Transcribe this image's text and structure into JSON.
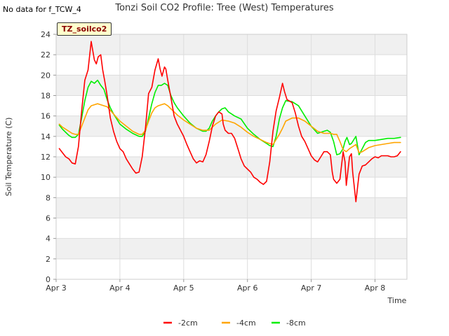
{
  "no_data_note": "No data for f_TCW_4",
  "badge_label": "TZ_soilco2",
  "chart_data": {
    "type": "line",
    "title": "Tonzi Soil CO2 Profile: Tree (West) Temperatures",
    "xlabel": "Time",
    "ylabel": "Soil Temperature (C)",
    "xlim": [
      3,
      8.5
    ],
    "ylim": [
      0,
      24
    ],
    "x_ticks": [
      3,
      4,
      5,
      6,
      7,
      8
    ],
    "x_tick_labels": [
      "Apr 3",
      "Apr 4",
      "Apr 5",
      "Apr 6",
      "Apr 7",
      "Apr 8"
    ],
    "y_ticks": [
      0,
      2,
      4,
      6,
      8,
      10,
      12,
      14,
      16,
      18,
      20,
      22,
      24
    ],
    "legend_position": "bottom-center",
    "series": [
      {
        "name": "-2cm",
        "color": "#ff0000",
        "x": [
          3.05,
          3.1,
          3.15,
          3.2,
          3.25,
          3.3,
          3.35,
          3.4,
          3.45,
          3.5,
          3.55,
          3.6,
          3.63,
          3.66,
          3.7,
          3.73,
          3.76,
          3.8,
          3.85,
          3.9,
          3.95,
          4.0,
          4.05,
          4.1,
          4.15,
          4.2,
          4.25,
          4.3,
          4.35,
          4.4,
          4.45,
          4.5,
          4.55,
          4.6,
          4.63,
          4.66,
          4.7,
          4.72,
          4.75,
          4.8,
          4.85,
          4.9,
          4.95,
          5.0,
          5.05,
          5.1,
          5.15,
          5.2,
          5.25,
          5.3,
          5.35,
          5.4,
          5.45,
          5.5,
          5.55,
          5.6,
          5.62,
          5.65,
          5.7,
          5.75,
          5.8,
          5.85,
          5.9,
          5.95,
          6.0,
          6.05,
          6.1,
          6.15,
          6.2,
          6.25,
          6.3,
          6.35,
          6.4,
          6.45,
          6.5,
          6.55,
          6.58,
          6.62,
          6.65,
          6.7,
          6.75,
          6.8,
          6.85,
          6.9,
          6.95,
          7.0,
          7.05,
          7.1,
          7.15,
          7.2,
          7.25,
          7.3,
          7.33,
          7.35,
          7.4,
          7.45,
          7.5,
          7.53,
          7.55,
          7.6,
          7.63,
          7.65,
          7.7,
          7.75,
          7.8,
          7.85,
          7.9,
          7.95,
          8.0,
          8.05,
          8.1,
          8.15,
          8.2,
          8.25,
          8.3,
          8.35,
          8.4
        ],
        "values": [
          12.8,
          12.4,
          12.0,
          11.8,
          11.4,
          11.3,
          13.0,
          16.5,
          19.5,
          20.5,
          23.3,
          21.5,
          21.1,
          21.8,
          22.0,
          20.5,
          19.5,
          18.0,
          15.8,
          14.5,
          13.5,
          12.8,
          12.5,
          11.8,
          11.3,
          10.8,
          10.4,
          10.5,
          12.0,
          14.8,
          18.2,
          18.8,
          20.5,
          21.6,
          20.6,
          19.9,
          20.8,
          20.6,
          19.5,
          17.8,
          16.0,
          15.2,
          14.6,
          14.0,
          13.2,
          12.5,
          11.8,
          11.4,
          11.6,
          11.5,
          12.2,
          13.5,
          15.0,
          16.0,
          16.4,
          16.2,
          15.2,
          14.6,
          14.3,
          14.3,
          13.8,
          12.8,
          11.8,
          11.1,
          10.8,
          10.5,
          10.0,
          9.8,
          9.5,
          9.3,
          9.6,
          11.5,
          14.5,
          16.5,
          17.8,
          19.2,
          18.4,
          17.6,
          17.5,
          17.3,
          16.3,
          15.0,
          14.0,
          13.5,
          12.8,
          12.1,
          11.7,
          11.5,
          12.0,
          12.5,
          12.5,
          12.2,
          10.5,
          9.8,
          9.4,
          9.8,
          12.5,
          11.5,
          9.2,
          12.0,
          12.3,
          10.5,
          7.6,
          10.3,
          11.1,
          11.2,
          11.5,
          11.8,
          12.0,
          11.9,
          12.1,
          12.1,
          12.1,
          12.0,
          12.0,
          12.1,
          12.5
        ]
      },
      {
        "name": "-4cm",
        "color": "#ffa500",
        "x": [
          3.05,
          3.1,
          3.15,
          3.2,
          3.25,
          3.3,
          3.35,
          3.4,
          3.45,
          3.5,
          3.55,
          3.6,
          3.65,
          3.7,
          3.75,
          3.8,
          3.9,
          4.0,
          4.1,
          4.2,
          4.3,
          4.35,
          4.4,
          4.45,
          4.5,
          4.55,
          4.6,
          4.65,
          4.7,
          4.75,
          4.8,
          4.9,
          5.0,
          5.1,
          5.2,
          5.3,
          5.4,
          5.5,
          5.6,
          5.7,
          5.8,
          5.9,
          6.0,
          6.1,
          6.2,
          6.3,
          6.4,
          6.5,
          6.55,
          6.6,
          6.7,
          6.8,
          6.9,
          7.0,
          7.1,
          7.2,
          7.3,
          7.35,
          7.4,
          7.45,
          7.5,
          7.55,
          7.6,
          7.65,
          7.7,
          7.75,
          7.8,
          7.9,
          8.0,
          8.1,
          8.2,
          8.3,
          8.4
        ],
        "values": [
          15.2,
          14.9,
          14.7,
          14.5,
          14.3,
          14.2,
          14.2,
          15.0,
          15.8,
          16.6,
          17.0,
          17.1,
          17.2,
          17.1,
          17.0,
          16.9,
          16.2,
          15.5,
          15.0,
          14.5,
          14.2,
          14.2,
          14.6,
          15.5,
          16.3,
          16.8,
          17.0,
          17.1,
          17.2,
          17.0,
          16.7,
          16.1,
          15.6,
          15.2,
          14.8,
          14.6,
          14.6,
          15.2,
          15.6,
          15.5,
          15.3,
          14.9,
          14.4,
          14.0,
          13.7,
          13.4,
          13.2,
          14.2,
          14.8,
          15.5,
          15.8,
          15.8,
          15.5,
          15.0,
          14.5,
          14.3,
          14.3,
          14.2,
          14.2,
          13.5,
          12.7,
          12.5,
          12.8,
          13.0,
          13.2,
          12.4,
          12.5,
          12.9,
          13.1,
          13.2,
          13.3,
          13.4,
          13.4
        ]
      },
      {
        "name": "-8cm",
        "color": "#00ee00",
        "x": [
          3.05,
          3.1,
          3.15,
          3.2,
          3.25,
          3.3,
          3.35,
          3.4,
          3.45,
          3.5,
          3.55,
          3.6,
          3.65,
          3.7,
          3.75,
          3.8,
          3.85,
          3.9,
          3.95,
          4.0,
          4.1,
          4.2,
          4.3,
          4.35,
          4.4,
          4.45,
          4.5,
          4.55,
          4.6,
          4.65,
          4.7,
          4.75,
          4.8,
          4.85,
          4.9,
          5.0,
          5.1,
          5.2,
          5.3,
          5.35,
          5.4,
          5.45,
          5.5,
          5.55,
          5.6,
          5.65,
          5.7,
          5.8,
          5.9,
          6.0,
          6.1,
          6.2,
          6.3,
          6.35,
          6.4,
          6.45,
          6.5,
          6.55,
          6.6,
          6.7,
          6.8,
          6.9,
          7.0,
          7.1,
          7.2,
          7.25,
          7.3,
          7.35,
          7.4,
          7.45,
          7.5,
          7.53,
          7.56,
          7.6,
          7.63,
          7.66,
          7.7,
          7.75,
          7.8,
          7.85,
          7.9,
          8.0,
          8.1,
          8.2,
          8.3,
          8.4
        ],
        "values": [
          15.1,
          14.7,
          14.4,
          14.1,
          13.9,
          13.9,
          14.2,
          15.8,
          17.5,
          18.8,
          19.4,
          19.2,
          19.5,
          19.0,
          18.6,
          17.6,
          16.8,
          16.2,
          15.7,
          15.2,
          14.7,
          14.3,
          14.0,
          14.0,
          14.5,
          15.8,
          17.2,
          18.3,
          19.0,
          19.0,
          19.2,
          19.0,
          18.0,
          17.3,
          16.8,
          16.0,
          15.3,
          14.8,
          14.5,
          14.5,
          14.8,
          15.5,
          16.0,
          16.4,
          16.7,
          16.8,
          16.4,
          16.0,
          15.7,
          14.8,
          14.2,
          13.7,
          13.3,
          13.1,
          13.0,
          14.0,
          15.7,
          16.8,
          17.5,
          17.4,
          17.0,
          16.0,
          15.0,
          14.3,
          14.5,
          14.6,
          14.4,
          13.5,
          12.2,
          12.3,
          12.8,
          13.5,
          13.9,
          13.2,
          13.3,
          13.6,
          14.0,
          12.2,
          12.8,
          13.4,
          13.6,
          13.6,
          13.7,
          13.8,
          13.8,
          13.9
        ]
      }
    ]
  }
}
